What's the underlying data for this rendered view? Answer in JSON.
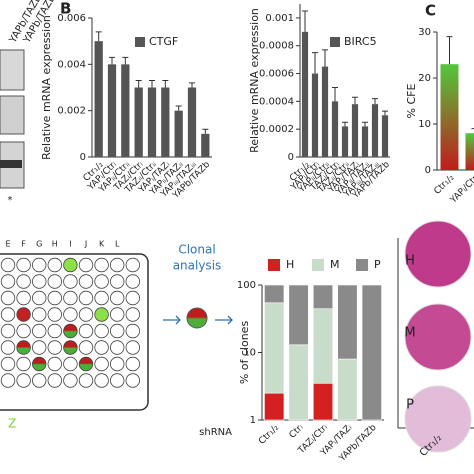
{
  "panel_labels": [
    "B",
    "C"
  ],
  "blot": {
    "labels": [
      "YAPb/TAZb",
      "YAPb/TAZb"
    ],
    "marker": "*"
  },
  "plate": {
    "columns": [
      "E",
      "F",
      "G",
      "H",
      "I",
      "J",
      "K",
      "L"
    ],
    "footer": "Z"
  },
  "clonal": {
    "lines": [
      "Clonal",
      "analysis"
    ]
  },
  "colonies": {
    "rows": [
      "H",
      "M",
      "P"
    ],
    "category": "Ctr₁/₂"
  },
  "shrna_label": "shRNA",
  "chart_data": [
    {
      "type": "bar",
      "y_label": "Relative mRNA expression",
      "categories": [
        "Ctr₁/₂",
        "YAPᵢ/Ctrᵢ",
        "YAPᵢᵢ/Ctrᵢᵢ",
        "TAZᵢ/Ctrᵢ",
        "TAZᵢᵢ/Ctrᵢᵢ",
        "YAPᵢ/TAZᵢ",
        "YAPᵢᵢ/TAZᵢᵢ",
        "YAPᵢᵢᵢ/TAZᵢᵢᵢ",
        "YAPb/TAZb"
      ],
      "series": [
        {
          "name": "CTGF",
          "color": "#555555",
          "values": [
            0.005,
            0.004,
            0.004,
            0.003,
            0.003,
            0.003,
            0.002,
            0.003,
            0.001
          ],
          "errors": [
            0.0004,
            0.0003,
            0.0003,
            0.0003,
            0.0003,
            0.0003,
            0.0002,
            0.0002,
            0.0002
          ]
        }
      ],
      "ylim": [
        0,
        0.006
      ],
      "yticks": [
        0,
        0.002,
        0.004,
        0.006
      ],
      "legend": "upper right"
    },
    {
      "type": "bar",
      "y_label": "Relative mRNA expression",
      "categories": [
        "Ctr₁/₂",
        "YAPᵢ/Ctrᵢ",
        "YAPᵢᵢ/Ctrᵢᵢ",
        "TAZᵢ/Ctrᵢ",
        "TAZᵢᵢ/Ctrᵢᵢ",
        "YAPᵢ/TAZᵢ",
        "YAPᵢᵢ/TAZᵢᵢ",
        "YAPᵢᵢᵢ/TAZᵢᵢᵢ",
        "YAPb/TAZb"
      ],
      "series": [
        {
          "name": "BIRC5",
          "color": "#555555",
          "values": [
            0.0009,
            0.0006,
            0.00065,
            0.0004,
            0.00022,
            0.00038,
            0.00022,
            0.00038,
            0.0003
          ],
          "errors": [
            0.00015,
            0.00015,
            0.00012,
            0.0001,
            3e-05,
            5e-05,
            3e-05,
            4e-05,
            3e-05
          ]
        }
      ],
      "ylim": [
        0,
        0.0011
      ],
      "yticks": [
        0,
        0.0002,
        0.0004,
        0.0006,
        0.0008,
        0.001
      ],
      "legend": "upper right"
    },
    {
      "type": "bar",
      "y_label": "% CFE",
      "categories": [
        "Ctr₁/₂",
        "YAPᵢ/Ctrᵢ"
      ],
      "series": [
        {
          "gradient": [
            "#52c83c",
            "#c01c1c"
          ],
          "values": [
            23,
            8
          ],
          "errors": [
            6,
            1
          ]
        }
      ],
      "ylim": [
        0,
        30
      ],
      "yticks": [
        0,
        10,
        20,
        30
      ]
    },
    {
      "type": "stacked_bar",
      "y_label": "% of clones",
      "log_scale": true,
      "categories": [
        "Ctr₁/₂",
        "Ctrᵢ",
        "TAZᵢ/Ctrᵢ",
        "YAPᵢ/TAZᵢ",
        "YAPb/TAZb"
      ],
      "series": [
        {
          "name": "H",
          "color": "#d42020",
          "values": [
            2.5,
            0,
            3.5,
            0,
            0
          ]
        },
        {
          "name": "M",
          "color": "#c8ddc9",
          "values": [
            52,
            13,
            41,
            8,
            0
          ]
        },
        {
          "name": "P",
          "color": "#8a8a8a",
          "values": [
            45.5,
            87,
            55.5,
            92,
            100
          ]
        }
      ],
      "ylim": [
        1,
        100
      ],
      "yticks": [
        1,
        10,
        100
      ],
      "legend": "top"
    }
  ]
}
